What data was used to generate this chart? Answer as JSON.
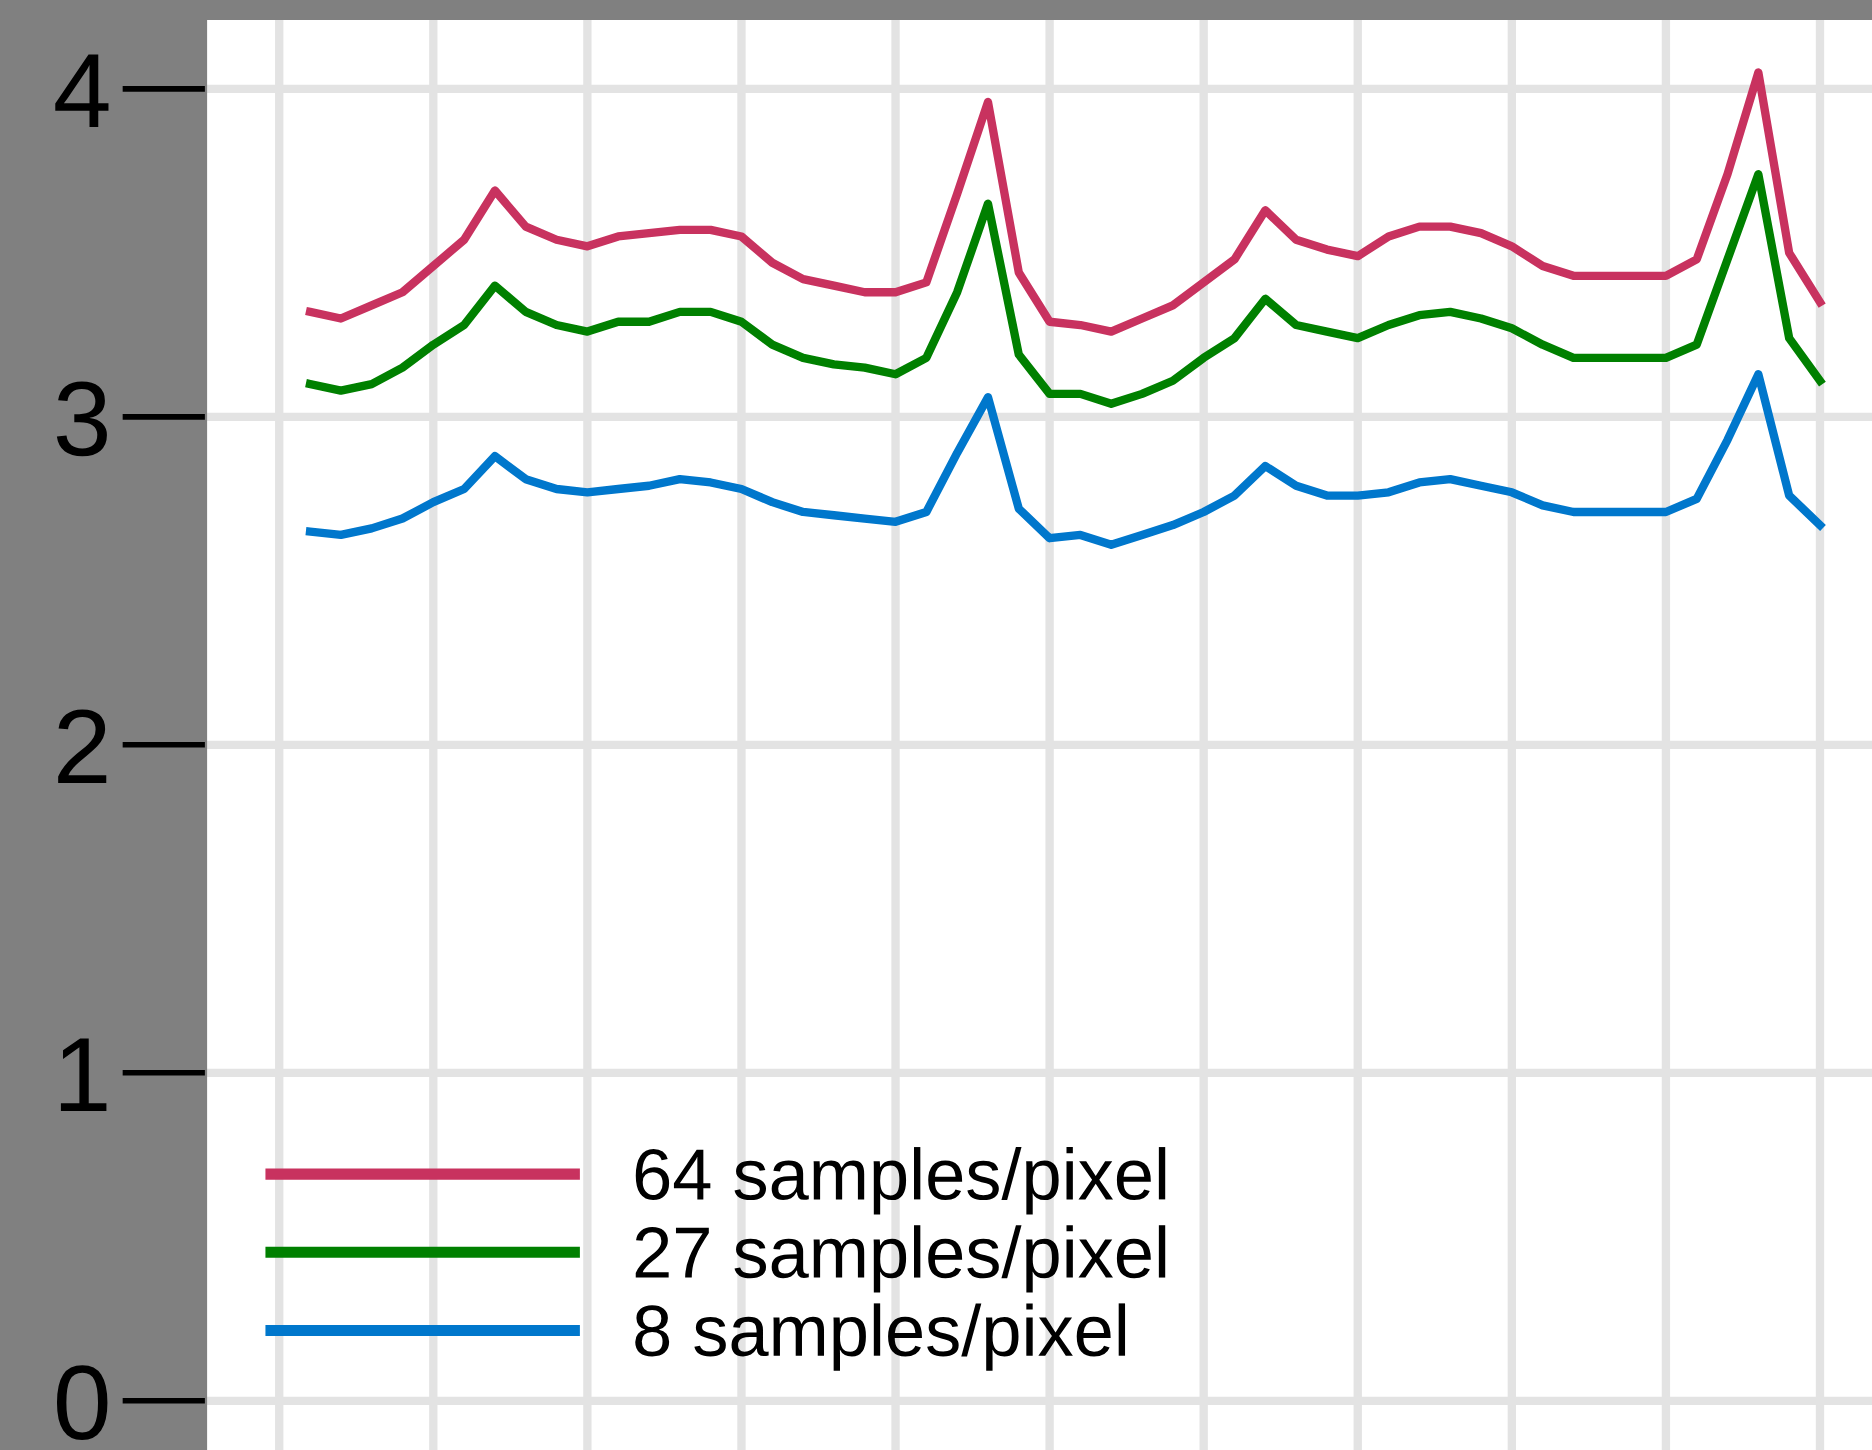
{
  "chart_data": {
    "type": "line",
    "categories": [
      null,
      null,
      null,
      null,
      null,
      null,
      null,
      null,
      null,
      null,
      null,
      null,
      null,
      null,
      null,
      null,
      null,
      null,
      null,
      null,
      null,
      null,
      null,
      null,
      null,
      null,
      null,
      null,
      null,
      null,
      null,
      null,
      null,
      null,
      null,
      null,
      null,
      null,
      null,
      null,
      null,
      null,
      null,
      null,
      null,
      null,
      null,
      null,
      null,
      null
    ],
    "series": [
      {
        "name": "64 samples/pixel",
        "color": "#c8325f",
        "values": [
          3.32,
          3.3,
          3.34,
          3.38,
          3.46,
          3.54,
          3.69,
          3.58,
          3.54,
          3.52,
          3.55,
          3.56,
          3.57,
          3.57,
          3.55,
          3.47,
          3.42,
          3.4,
          3.38,
          3.38,
          3.41,
          3.68,
          3.96,
          3.44,
          3.29,
          3.28,
          3.26,
          3.3,
          3.34,
          3.41,
          3.48,
          3.63,
          3.54,
          3.51,
          3.49,
          3.55,
          3.58,
          3.58,
          3.56,
          3.52,
          3.46,
          3.43,
          3.43,
          3.43,
          3.43,
          3.48,
          3.74,
          4.05,
          3.5,
          3.35
        ]
      },
      {
        "name": "27 samples/pixel",
        "color": "#008000",
        "values": [
          3.1,
          3.08,
          3.1,
          3.15,
          3.22,
          3.28,
          3.4,
          3.32,
          3.28,
          3.26,
          3.29,
          3.29,
          3.32,
          3.32,
          3.29,
          3.22,
          3.18,
          3.16,
          3.15,
          3.13,
          3.18,
          3.38,
          3.65,
          3.19,
          3.07,
          3.07,
          3.04,
          3.07,
          3.11,
          3.18,
          3.24,
          3.36,
          3.28,
          3.26,
          3.24,
          3.28,
          3.31,
          3.32,
          3.3,
          3.27,
          3.22,
          3.18,
          3.18,
          3.18,
          3.18,
          3.22,
          3.48,
          3.74,
          3.24,
          3.11
        ]
      },
      {
        "name": "8 samples/pixel",
        "color": "#0077cc",
        "values": [
          2.65,
          2.64,
          2.66,
          2.69,
          2.74,
          2.78,
          2.88,
          2.81,
          2.78,
          2.77,
          2.78,
          2.79,
          2.81,
          2.8,
          2.78,
          2.74,
          2.71,
          2.7,
          2.69,
          2.68,
          2.71,
          2.89,
          3.06,
          2.72,
          2.63,
          2.64,
          2.61,
          2.64,
          2.67,
          2.71,
          2.76,
          2.85,
          2.79,
          2.76,
          2.76,
          2.77,
          2.8,
          2.81,
          2.79,
          2.77,
          2.73,
          2.71,
          2.71,
          2.71,
          2.71,
          2.75,
          2.93,
          3.13,
          2.76,
          2.67
        ]
      }
    ],
    "ylim": [
      -0.15,
      4.21
    ],
    "yticks": [
      0,
      1,
      2,
      3,
      4
    ],
    "tick_labels": "y",
    "grid": true,
    "legend": "bottom left",
    "line_style": "solid",
    "marker": "none"
  }
}
